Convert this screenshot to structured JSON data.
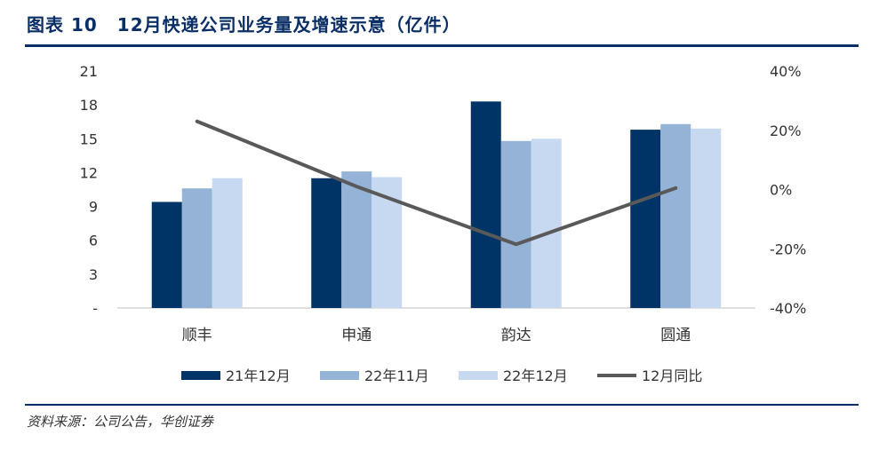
{
  "title": {
    "prefix": "图表",
    "number": "10",
    "text": "12月快递公司业务量及增速示意（亿件）"
  },
  "source": "资料来源：公司公告，华创证券",
  "colors": {
    "title": "#0a2e66",
    "series1": "#003366",
    "series2": "#95b3d7",
    "series3": "#c6d9f0",
    "line": "#595959"
  },
  "chart_data": {
    "type": "bar",
    "categories": [
      "顺丰",
      "申通",
      "韵达",
      "圆通"
    ],
    "series": [
      {
        "name": "21年12月",
        "kind": "bar",
        "axis": "left",
        "values": [
          9.4,
          11.5,
          18.3,
          15.8
        ]
      },
      {
        "name": "22年11月",
        "kind": "bar",
        "axis": "left",
        "values": [
          10.6,
          12.1,
          14.8,
          16.3
        ]
      },
      {
        "name": "22年12月",
        "kind": "bar",
        "axis": "left",
        "values": [
          11.5,
          11.6,
          15.0,
          15.9
        ]
      },
      {
        "name": "12月同比",
        "kind": "line",
        "axis": "right",
        "values": [
          23,
          1,
          -18.5,
          0.5
        ]
      }
    ],
    "y_left": {
      "min": 0,
      "max": 21,
      "ticks": [
        0,
        3,
        6,
        9,
        12,
        15,
        18,
        21
      ],
      "tick_labels": [
        "-",
        "3",
        "6",
        "9",
        "12",
        "15",
        "18",
        "21"
      ]
    },
    "y_right": {
      "min": -40,
      "max": 40,
      "ticks": [
        -40,
        -20,
        0,
        20,
        40
      ],
      "tick_labels": [
        "-40%",
        "-20%",
        "0%",
        "20%",
        "40%"
      ]
    },
    "grid": false,
    "legend": "bottom"
  }
}
